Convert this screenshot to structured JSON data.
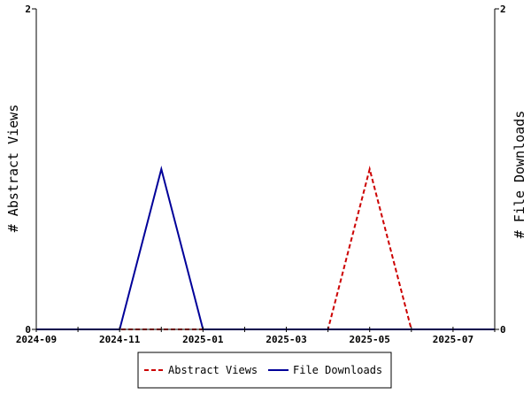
{
  "chart_data": {
    "type": "line",
    "x": [
      "2024-09",
      "2024-10",
      "2024-11",
      "2024-12",
      "2025-01",
      "2025-02",
      "2025-03",
      "2025-04",
      "2025-05",
      "2025-06",
      "2025-07",
      "2025-08"
    ],
    "x_tick_labels": [
      "2024-09",
      "2024-11",
      "2025-01",
      "2025-03",
      "2025-05",
      "2025-07"
    ],
    "series": [
      {
        "name": "Abstract Views",
        "axis": "left",
        "color": "#cc0000",
        "line_style": "dashed",
        "values": [
          0,
          0,
          0,
          0,
          0,
          0,
          0,
          0,
          1,
          0,
          0,
          0
        ]
      },
      {
        "name": "File Downloads",
        "axis": "right",
        "color": "#000099",
        "line_style": "solid",
        "values": [
          0,
          0,
          0,
          1,
          0,
          0,
          0,
          0,
          0,
          0,
          0,
          0
        ]
      }
    ],
    "ylabel_left": "# Abstract Views",
    "ylabel_right": "# File Downloads",
    "ylim_left": [
      0,
      2
    ],
    "ylim_right": [
      0,
      2
    ],
    "y_ticks_left": [
      "0",
      "2"
    ],
    "y_ticks_right": [
      "0",
      "2"
    ],
    "grid": false,
    "legend_position": "bottom"
  }
}
